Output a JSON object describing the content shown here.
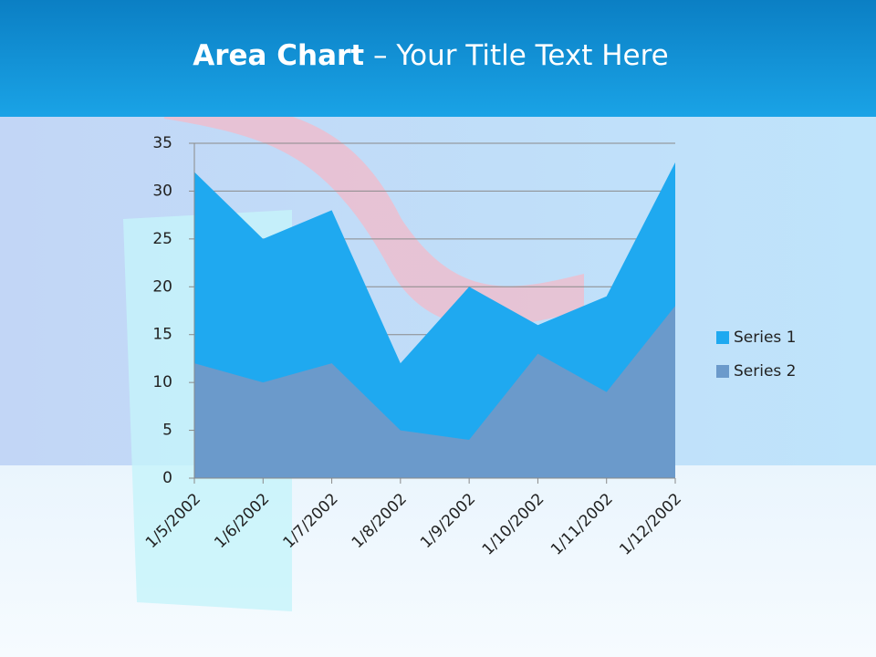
{
  "chart_data": {
    "type": "area",
    "title": {
      "emphasis": "Area Chart",
      "text": "– Your Title Text Here"
    },
    "categories": [
      "1/5/2002",
      "1/6/2002",
      "1/7/2002",
      "1/8/2002",
      "1/9/2002",
      "1/10/2002",
      "1/11/2002",
      "1/12/2002"
    ],
    "series": [
      {
        "name": "Series 1",
        "color": "#1fa9f0",
        "values": [
          32,
          25,
          28,
          12,
          20,
          16,
          19,
          33
        ]
      },
      {
        "name": "Series 2",
        "color": "#6b9acb",
        "values": [
          12,
          10,
          12,
          5,
          4,
          13,
          9,
          18
        ]
      }
    ],
    "ylim": [
      0,
      35
    ],
    "yticks": [
      0,
      5,
      10,
      15,
      20,
      25,
      30,
      35
    ],
    "grid": true,
    "legend": "right"
  }
}
